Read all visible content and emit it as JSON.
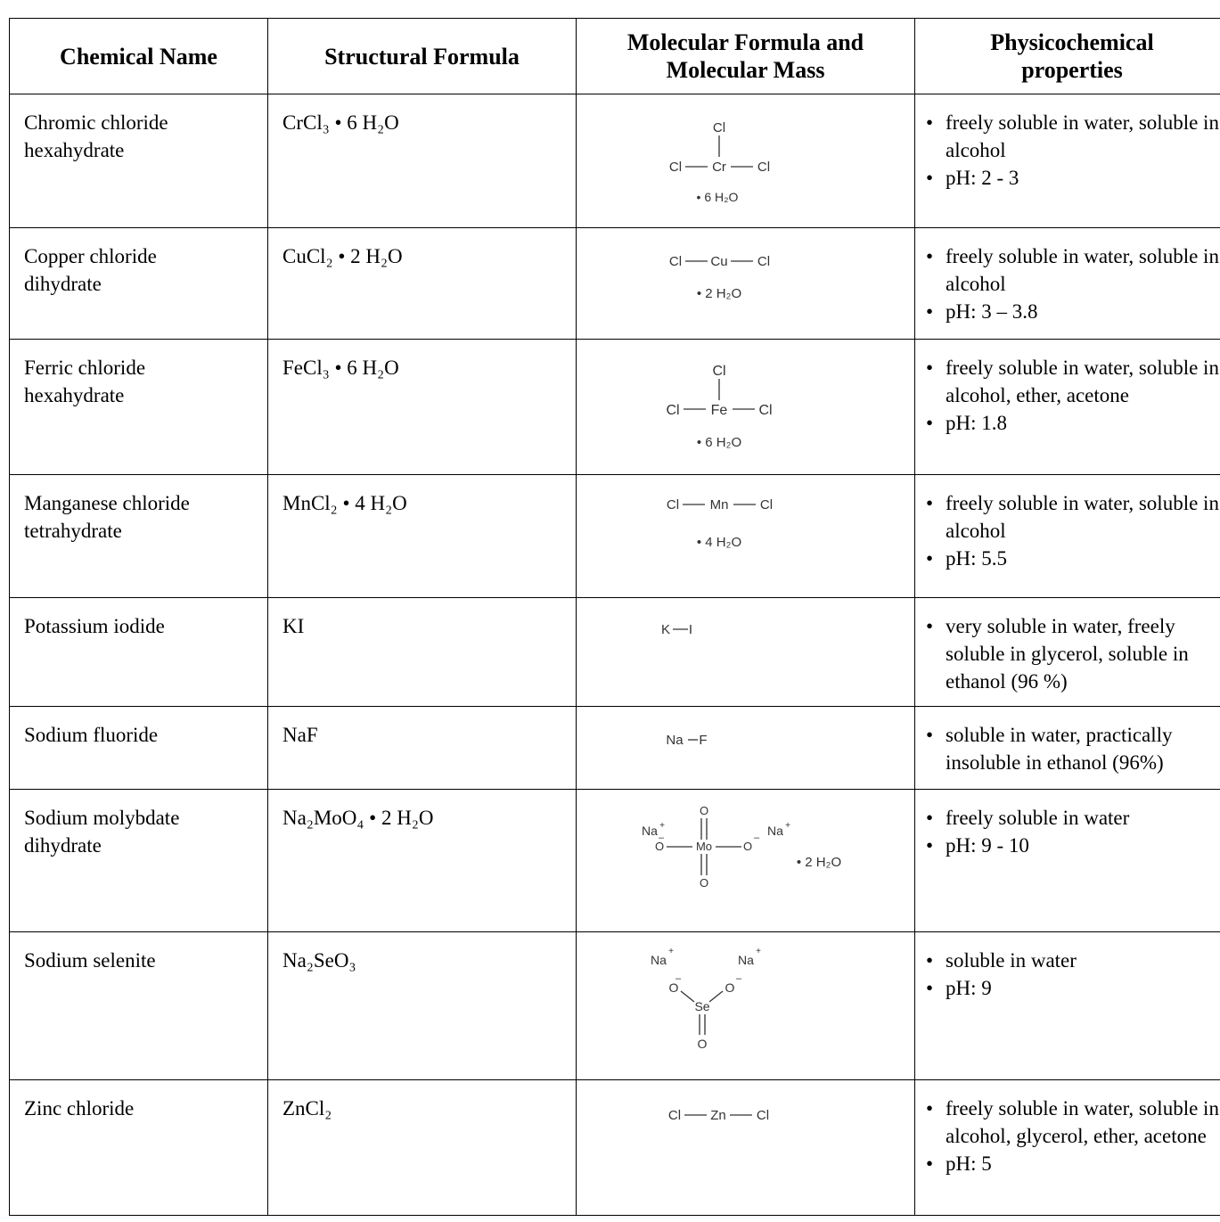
{
  "headers": {
    "chemical_name": "Chemical Name",
    "structural_formula": "Structural Formula",
    "molecular_formula_line1": "Molecular Formula and",
    "molecular_formula_line2": "Molecular Mass",
    "physicochemical_line1": "Physicochemical",
    "physicochemical_line2": "properties"
  },
  "rows": [
    {
      "name_line1": "Chromic chloride",
      "name_line2": "hexahydrate",
      "formula": "CrCl₃ • 6 H₂O",
      "structure": {
        "atoms": [
          "Cl",
          "Cl",
          "Cr",
          "Cl"
        ],
        "hydrate": "• 6 H₂O"
      },
      "properties": [
        "freely soluble in water, soluble in alcohol",
        "pH: 2 - 3"
      ]
    },
    {
      "name_line1": "Copper chloride",
      "name_line2": "dihydrate",
      "formula": "CuCl₂ • 2 H₂O",
      "structure": {
        "atoms": [
          "Cl",
          "Cu",
          "Cl"
        ],
        "hydrate": "• 2 H₂O"
      },
      "properties": [
        "freely soluble in water, soluble in alcohol",
        "pH: 3 – 3.8"
      ]
    },
    {
      "name_line1": "Ferric chloride",
      "name_line2": "hexahydrate",
      "formula": "FeCl₃ • 6 H₂O",
      "structure": {
        "atoms": [
          "Cl",
          "Cl",
          "Fe",
          "Cl"
        ],
        "hydrate": "• 6 H₂O"
      },
      "properties": [
        "freely soluble in water, soluble in alcohol, ether, acetone",
        "pH: 1.8"
      ]
    },
    {
      "name_line1": "Manganese chloride",
      "name_line2": "tetrahydrate",
      "formula": "MnCl₂ • 4 H₂O",
      "structure": {
        "atoms": [
          "Cl",
          "Mn",
          "Cl"
        ],
        "hydrate": "• 4 H₂O"
      },
      "properties": [
        "freely soluble in water, soluble in alcohol",
        "pH: 5.5"
      ]
    },
    {
      "name_line1": "Potassium iodide",
      "name_line2": "",
      "formula": "KI",
      "structure": {
        "atoms": [
          "K",
          "I"
        ]
      },
      "properties": [
        "very soluble in water, freely soluble in glycerol, soluble in ethanol (96 %)"
      ]
    },
    {
      "name_line1": "Sodium fluoride",
      "name_line2": "",
      "formula": "NaF",
      "structure": {
        "atoms": [
          "Na",
          "F"
        ]
      },
      "properties": [
        "soluble in water, practically insoluble in ethanol (96%)"
      ]
    },
    {
      "name_line1": "Sodium molybdate",
      "name_line2": "dihydrate",
      "formula": "Na₂MoO₄ • 2 H₂O",
      "structure": {
        "atoms": [
          "O",
          "Na",
          "+",
          "O",
          "–",
          "Mo",
          "O",
          "–",
          "Na",
          "+",
          "O"
        ],
        "hydrate": "• 2 H₂O"
      },
      "properties": [
        "freely soluble in water",
        "pH: 9 - 10"
      ]
    },
    {
      "name_line1": "Sodium selenite",
      "name_line2": "",
      "formula": "Na₂SeO₃",
      "structure": {
        "atoms": [
          "Na",
          "+",
          "Na",
          "+",
          "O",
          "–",
          "O",
          "–",
          "Se",
          "O"
        ]
      },
      "properties": [
        "soluble in water",
        "pH: 9"
      ]
    },
    {
      "name_line1": "Zinc chloride",
      "name_line2": "",
      "formula": "ZnCl₂",
      "structure": {
        "atoms": [
          "Cl",
          "Zn",
          "Cl"
        ]
      },
      "properties": [
        "freely soluble in water, soluble in alcohol, glycerol, ether, acetone",
        "pH: 5"
      ]
    }
  ]
}
